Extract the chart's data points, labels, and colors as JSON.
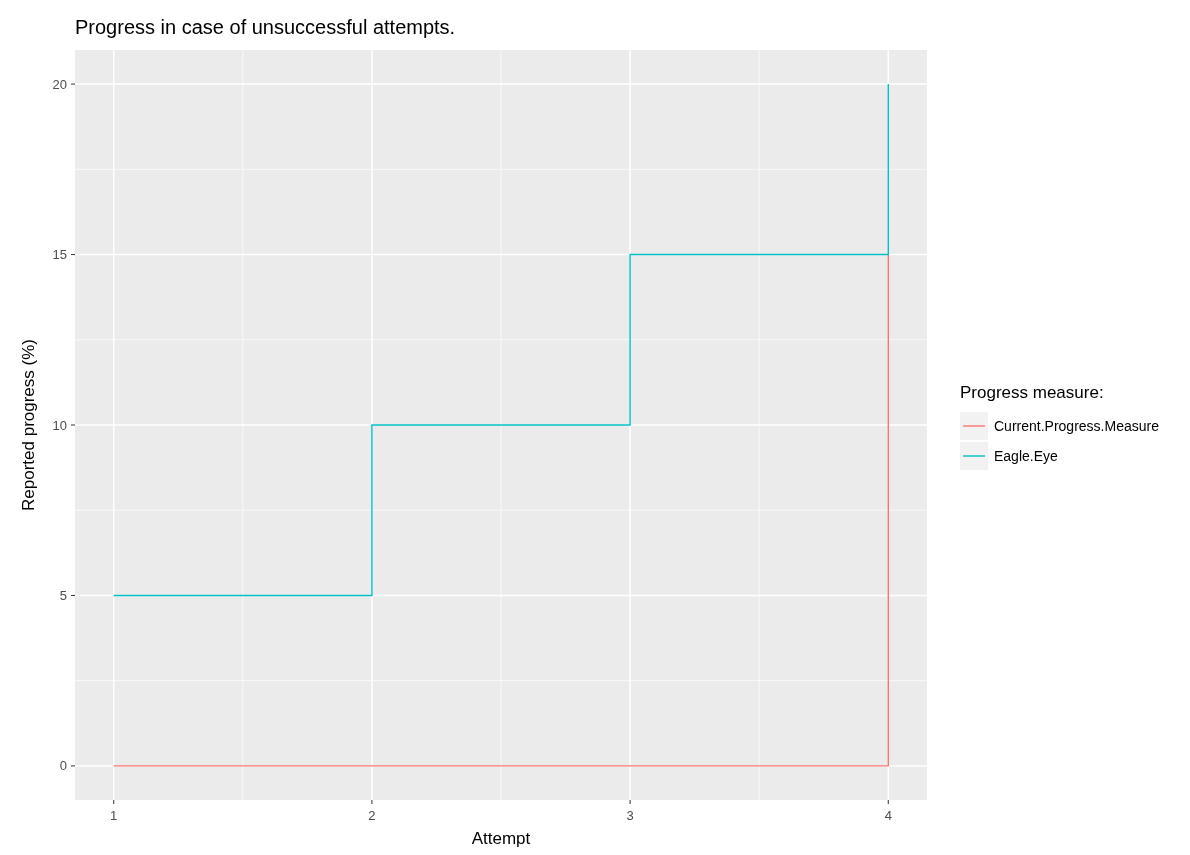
{
  "chart_data": {
    "type": "step",
    "title": "Progress in case of unsuccessful attempts.",
    "xlabel": "Attempt",
    "ylabel": "Reported progress (%)",
    "legend_title": "Progress measure:",
    "x": [
      1,
      2,
      3,
      4
    ],
    "series": [
      {
        "name": "Current.Progress.Measure",
        "color": "#f8766d",
        "values": [
          0,
          0,
          0,
          15
        ]
      },
      {
        "name": "Eagle.Eye",
        "color": "#00bfc4",
        "values": [
          5,
          10,
          15,
          20
        ]
      }
    ],
    "xlim": [
      0.85,
      4.15
    ],
    "ylim": [
      -1,
      21
    ],
    "xticks": [
      1,
      2,
      3,
      4
    ],
    "yticks": [
      0,
      5,
      10,
      15,
      20
    ],
    "grid": true,
    "legend": "right"
  }
}
